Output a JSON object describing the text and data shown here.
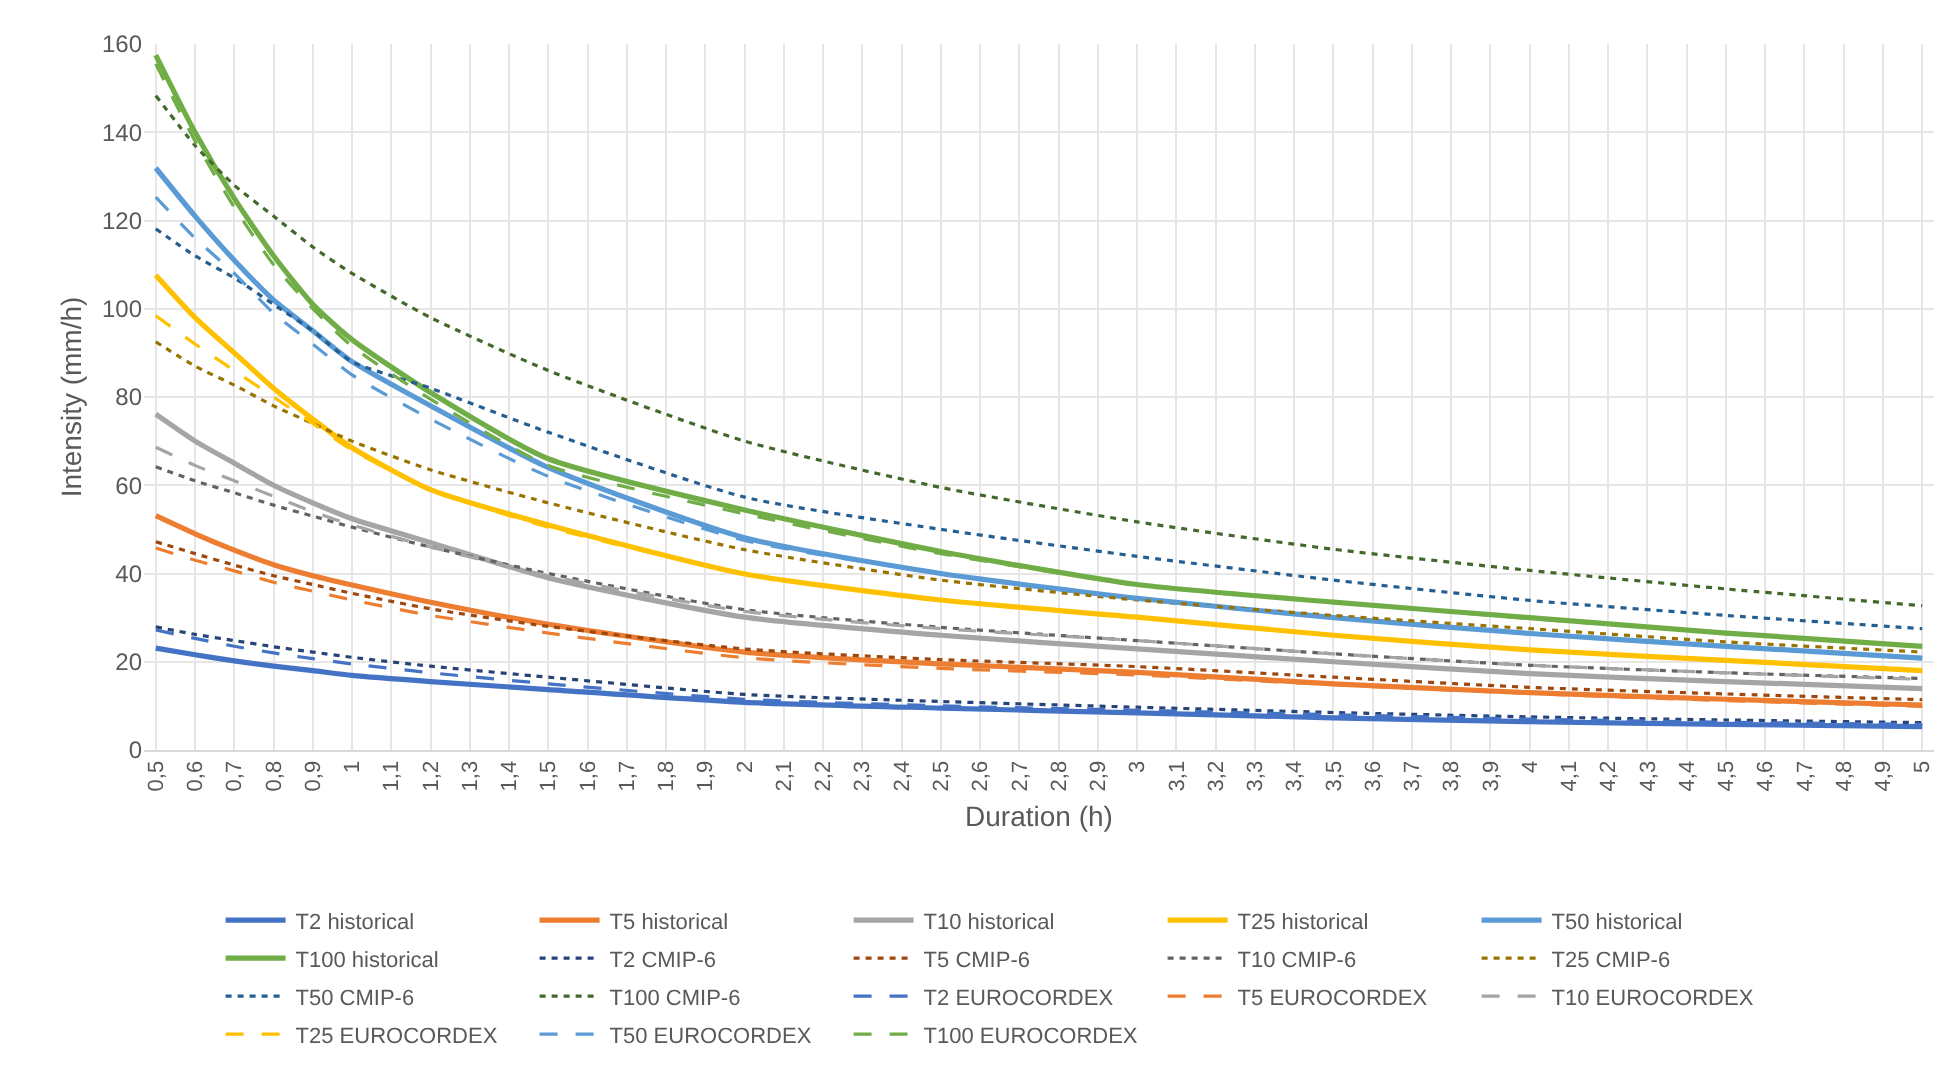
{
  "chart_data": {
    "type": "line",
    "xlabel": "Duration (h)",
    "ylabel": "Intensity (mm/h)",
    "x": [
      0.5,
      0.6,
      0.7,
      0.8,
      0.9,
      1,
      1.2,
      1.5,
      2,
      2.5,
      3,
      3.5,
      4,
      4.5,
      5
    ],
    "xlim": [
      0.47,
      5.03
    ],
    "xticks": [
      {
        "value": 0.5,
        "label": "0,5"
      },
      {
        "value": 0.6,
        "label": "0,6"
      },
      {
        "value": 0.7,
        "label": "0,7"
      },
      {
        "value": 0.8,
        "label": "0,8"
      },
      {
        "value": 0.9,
        "label": "0,9"
      },
      1,
      {
        "value": 1.1,
        "label": "1,1"
      },
      {
        "value": 1.2,
        "label": "1,2"
      },
      {
        "value": 1.3,
        "label": "1,3"
      },
      {
        "value": 1.4,
        "label": "1,4"
      },
      {
        "value": 1.5,
        "label": "1,5"
      },
      {
        "value": 1.6,
        "label": "1,6"
      },
      {
        "value": 1.7,
        "label": "1,7"
      },
      {
        "value": 1.8,
        "label": "1,8"
      },
      {
        "value": 1.9,
        "label": "1,9"
      },
      2,
      {
        "value": 2.1,
        "label": "2,1"
      },
      {
        "value": 2.2,
        "label": "2,2"
      },
      {
        "value": 2.3,
        "label": "2,3"
      },
      {
        "value": 2.4,
        "label": "2,4"
      },
      {
        "value": 2.5,
        "label": "2,5"
      },
      {
        "value": 2.6,
        "label": "2,6"
      },
      {
        "value": 2.7,
        "label": "2,7"
      },
      {
        "value": 2.8,
        "label": "2,8"
      },
      {
        "value": 2.9,
        "label": "2,9"
      },
      3,
      {
        "value": 3.1,
        "label": "3,1"
      },
      {
        "value": 3.2,
        "label": "3,2"
      },
      {
        "value": 3.3,
        "label": "3,3"
      },
      {
        "value": 3.4,
        "label": "3,4"
      },
      {
        "value": 3.5,
        "label": "3,5"
      },
      {
        "value": 3.6,
        "label": "3,6"
      },
      {
        "value": 3.7,
        "label": "3,7"
      },
      {
        "value": 3.8,
        "label": "3,8"
      },
      {
        "value": 3.9,
        "label": "3,9"
      },
      4,
      {
        "value": 4.1,
        "label": "4,1"
      },
      {
        "value": 4.2,
        "label": "4,2"
      },
      {
        "value": 4.3,
        "label": "4,3"
      },
      {
        "value": 4.4,
        "label": "4,4"
      },
      {
        "value": 4.5,
        "label": "4,5"
      },
      {
        "value": 4.6,
        "label": "4,6"
      },
      {
        "value": 4.7,
        "label": "4,7"
      },
      {
        "value": 4.8,
        "label": "4,8"
      },
      {
        "value": 4.9,
        "label": "4,9"
      },
      5
    ],
    "ylim": [
      0,
      160
    ],
    "yticks": [
      0,
      20,
      40,
      60,
      80,
      100,
      120,
      140,
      160
    ],
    "grid": true,
    "legend": "bottom",
    "series": [
      {
        "name": "T2 historical",
        "color": "#4472c4",
        "line_style": "solid",
        "values": [
          23.1,
          21.6,
          20.2,
          19,
          18,
          16.9,
          15.5,
          13.7,
          10.8,
          9.5,
          8.4,
          7.3,
          6.4,
          5.8,
          5.3
        ]
      },
      {
        "name": "T5 historical",
        "color": "#ed7d31",
        "line_style": "solid",
        "values": [
          53.1,
          49,
          45.3,
          42,
          39.5,
          37.4,
          33.5,
          28.5,
          22.2,
          19.5,
          17.6,
          15,
          13,
          11.5,
          10.2
        ]
      },
      {
        "name": "T10 historical",
        "color": "#a5a5a5",
        "line_style": "solid",
        "values": [
          76.1,
          70,
          65,
          60,
          56,
          52.4,
          47,
          39,
          30.1,
          26,
          22.9,
          20,
          17.3,
          15.5,
          13.9
        ]
      },
      {
        "name": "T25 historical",
        "color": "#ffc000",
        "line_style": "solid",
        "values": [
          107.6,
          98,
          90,
          82,
          75,
          68.5,
          59,
          51,
          39.9,
          34,
          30.1,
          26,
          22.7,
          20.3,
          18
        ]
      },
      {
        "name": "T50 historical",
        "color": "#5b9bd5",
        "line_style": "solid",
        "values": [
          131.9,
          121,
          111,
          102,
          95,
          88,
          78,
          64,
          48.1,
          40,
          34.4,
          30,
          26.4,
          23.5,
          20.8
        ]
      },
      {
        "name": "T100 historical",
        "color": "#70ad47",
        "line_style": "solid",
        "values": [
          157.5,
          140,
          125,
          112,
          101,
          93,
          81,
          66,
          54.4,
          45,
          37.5,
          33.5,
          30,
          26.5,
          23.5
        ]
      },
      {
        "name": "T2 CMIP-6",
        "color": "#264478",
        "line_style": "dotted",
        "values": [
          27.9,
          26.2,
          24.8,
          23.4,
          22.2,
          21,
          19,
          16.5,
          12.6,
          11,
          9.7,
          8.5,
          7.5,
          6.8,
          6.2
        ]
      },
      {
        "name": "T5 CMIP-6",
        "color": "#9e480e",
        "line_style": "dotted",
        "values": [
          47.2,
          44.5,
          41.9,
          39.5,
          37.5,
          35.5,
          32,
          28,
          22.9,
          20.5,
          18.9,
          16.5,
          14.2,
          12.7,
          11.4
        ]
      },
      {
        "name": "T10 CMIP-6",
        "color": "#636363",
        "line_style": "dotted",
        "values": [
          64.2,
          61,
          58.3,
          55.5,
          53,
          50.5,
          46,
          40,
          31.8,
          27.8,
          24.8,
          21.8,
          19.2,
          17.5,
          16.2
        ]
      },
      {
        "name": "T25 CMIP-6",
        "color": "#997300",
        "line_style": "dotted",
        "values": [
          92.5,
          87,
          82.7,
          78,
          74,
          70,
          63.5,
          56,
          45.4,
          38.5,
          34,
          30.5,
          27.5,
          24.5,
          22.2
        ]
      },
      {
        "name": "T50 CMIP-6",
        "color": "#255e91",
        "line_style": "dotted",
        "values": [
          118.1,
          112,
          107,
          101,
          95,
          88,
          82,
          72,
          57.3,
          50,
          43.9,
          38.5,
          33.9,
          30.5,
          27.5
        ]
      },
      {
        "name": "T100 CMIP-6",
        "color": "#43682b",
        "line_style": "dotted",
        "values": [
          148.3,
          137,
          128,
          121,
          114,
          108,
          98,
          86,
          70,
          59.5,
          51.7,
          45.5,
          40.7,
          36.5,
          32.7
        ]
      },
      {
        "name": "T2 EUROCORDEX",
        "color": "#4472c4",
        "line_style": "dashed",
        "values": [
          27.2,
          25.3,
          23.5,
          22,
          20.7,
          19.5,
          17.5,
          15,
          11.5,
          10,
          9,
          8,
          7,
          6.3,
          5.8
        ]
      },
      {
        "name": "T5 EUROCORDEX",
        "color": "#ed7d31",
        "line_style": "dashed",
        "values": [
          45.8,
          43,
          40.6,
          38,
          36,
          34,
          30.5,
          26.5,
          20.9,
          18.5,
          17,
          14.8,
          12.8,
          11.2,
          9.9
        ]
      },
      {
        "name": "T10 EUROCORDEX",
        "color": "#a5a5a5",
        "line_style": "dashed",
        "values": [
          68.6,
          64.5,
          61,
          57.5,
          54,
          51,
          46,
          39.5,
          31.4,
          27.5,
          24.8,
          21.8,
          19.2,
          17.5,
          16
        ]
      },
      {
        "name": "T25 EUROCORDEX",
        "color": "#ffc000",
        "line_style": "dashed",
        "values": [
          98.4,
          92,
          86,
          80,
          74,
          68,
          59,
          50.5,
          40,
          34,
          30,
          26,
          22.7,
          20.3,
          18
        ]
      },
      {
        "name": "T50 EUROCORDEX",
        "color": "#5b9bd5",
        "line_style": "dashed",
        "values": [
          125.3,
          116,
          108,
          99,
          92,
          85,
          75,
          62,
          47.5,
          40,
          34.2,
          30,
          26.4,
          23.5,
          20.8
        ]
      },
      {
        "name": "T100 EUROCORDEX",
        "color": "#70ad47",
        "line_style": "dashed",
        "values": [
          155.5,
          138,
          123,
          110,
          100,
          91.5,
          79.5,
          64.5,
          53.5,
          44.5,
          37.5,
          33.5,
          29.8,
          26.5,
          23.5
        ]
      }
    ]
  }
}
